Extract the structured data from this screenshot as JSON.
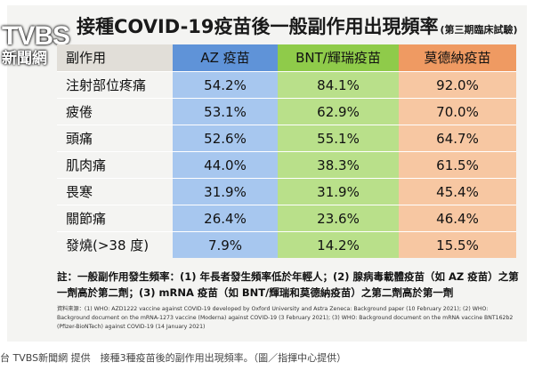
{
  "logo": {
    "mark": "TVBS",
    "sub": "新聞網"
  },
  "title": "接種COVID-19疫苗後一般副作用出現頻率",
  "title_note": "(第三期臨床試驗)",
  "table": {
    "headers": [
      "副作用",
      "AZ 疫苗",
      "BNT/輝瑞疫苗",
      "莫德納疫苗"
    ],
    "rows": [
      [
        "注射部位疼痛",
        "54.2%",
        "84.1%",
        "92.0%"
      ],
      [
        "疲倦",
        "53.1%",
        "62.9%",
        "70.0%"
      ],
      [
        "頭痛",
        "52.6%",
        "55.1%",
        "64.7%"
      ],
      [
        "肌肉痛",
        "44.0%",
        "38.3%",
        "61.5%"
      ],
      [
        "畏寒",
        "31.9%",
        "31.9%",
        "45.4%"
      ],
      [
        "關節痛",
        "26.4%",
        "23.6%",
        "46.4%"
      ],
      [
        "發燒(>38 度)",
        "7.9%",
        "14.2%",
        "15.5%"
      ]
    ]
  },
  "note": "註：一般副作用發生頻率：(1) 年長者發生頻率低於年輕人；(2) 腺病毒載體疫苗（如 AZ 疫苗）之第一劑高於第二劑；(3) mRNA 疫苗（如 BNT/輝瑞和莫德納疫苗）之第二劑高於第一劑",
  "source": "資料來源：(1) WHO: AZD1222 vaccine against COVID-19 developed by Oxford University and Astra Zeneca: Background paper (10 February 2021); (2) WHO: Background document on the mRNA-1273 vaccine (Moderna) against COVID-19 (3 February 2021); (3) WHO: Background document on the mRNA vaccine BNT162b2 (Pfizer-BioNTech) against COVID-19 (14 January 2021)",
  "caption": "台 TVBS新聞網 提供　接種3種疫苗後的副作用出現頻率。（圖／指揮中心提供）"
}
